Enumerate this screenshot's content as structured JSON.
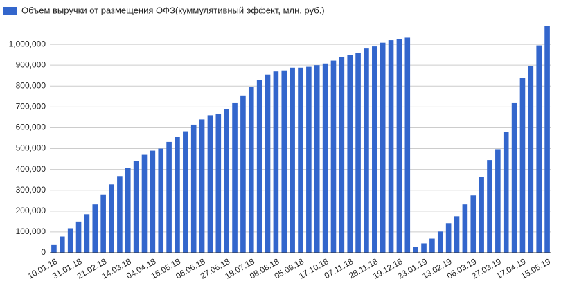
{
  "chart_data": {
    "type": "bar",
    "legend": "Объем выручки от размещения ОФЗ(куммулятивный эффект, млн. руб.)",
    "color": "#3366cc",
    "categories": [
      "10.01.18",
      null,
      null,
      "31.01.18",
      null,
      null,
      "21.02.18",
      null,
      null,
      "14.03.18",
      null,
      null,
      "04.04.18",
      null,
      null,
      "16.05.18",
      null,
      null,
      "06.06.18",
      null,
      null,
      "27.06.18",
      null,
      null,
      "18.07.18",
      null,
      null,
      "08.08.18",
      null,
      null,
      "05.09.18",
      null,
      null,
      "17.10.18",
      null,
      null,
      "07.11.18",
      null,
      null,
      "28.11.18",
      null,
      null,
      "19.12.18",
      null,
      null,
      "23.01.19",
      null,
      null,
      "13.02.19",
      null,
      null,
      "06.03.19",
      null,
      null,
      "27.03.19",
      null,
      null,
      "17.04.19",
      null,
      null,
      "15.05.19"
    ],
    "values": [
      37000,
      78000,
      118000,
      150000,
      185000,
      232000,
      280000,
      328000,
      368000,
      408000,
      440000,
      470000,
      490000,
      500000,
      532000,
      555000,
      583000,
      615000,
      640000,
      660000,
      668000,
      690000,
      718000,
      755000,
      795000,
      830000,
      855000,
      870000,
      875000,
      888000,
      888000,
      892000,
      900000,
      908000,
      922000,
      940000,
      950000,
      960000,
      980000,
      990000,
      1008000,
      1020000,
      1025000,
      1032000,
      27000,
      45000,
      68000,
      102000,
      142000,
      175000,
      232000,
      275000,
      365000,
      445000,
      497000,
      580000,
      718000,
      840000,
      895000,
      995000,
      1090000
    ],
    "ylim": [
      0,
      1100000
    ],
    "yticks": [
      0,
      {
        "value": 100000,
        "label": "100,000"
      },
      {
        "value": 200000,
        "label": "200,000"
      },
      {
        "value": 300000,
        "label": "300,000"
      },
      {
        "value": 400000,
        "label": "400,000"
      },
      {
        "value": 500000,
        "label": "500,000"
      },
      {
        "value": 600000,
        "label": "600,000"
      },
      {
        "value": 700000,
        "label": "700,000"
      },
      {
        "value": 800000,
        "label": "800,000"
      },
      {
        "value": 900000,
        "label": "900,000"
      },
      {
        "value": 1000000,
        "label": "1,000,000"
      }
    ],
    "grid": true
  }
}
